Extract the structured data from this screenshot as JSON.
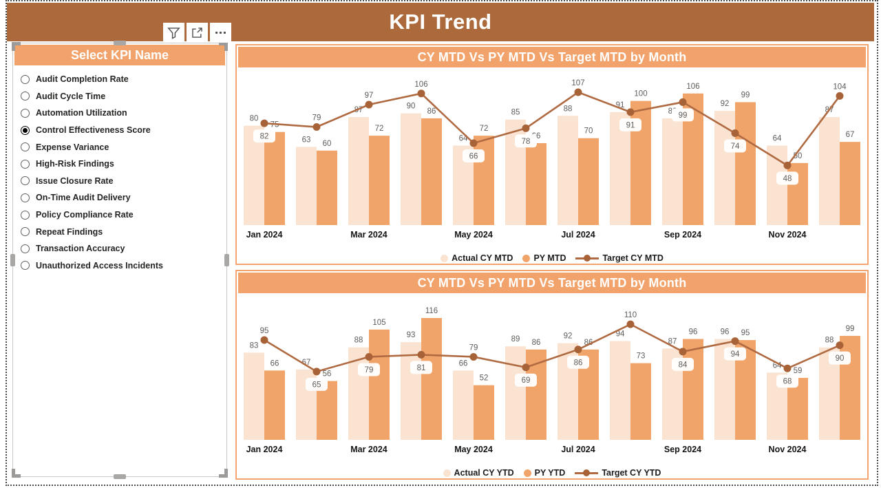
{
  "page": {
    "title": "KPI Trend"
  },
  "toolbar": {
    "buttons": [
      {
        "name": "filter"
      },
      {
        "name": "focus-mode"
      },
      {
        "name": "more-options"
      }
    ]
  },
  "slicer": {
    "title": "Select KPI Name",
    "options": [
      {
        "label": "Audit Completion Rate",
        "selected": false
      },
      {
        "label": "Audit Cycle Time",
        "selected": false
      },
      {
        "label": "Automation Utilization",
        "selected": false
      },
      {
        "label": "Control Effectiveness Score",
        "selected": true
      },
      {
        "label": "Expense Variance",
        "selected": false
      },
      {
        "label": "High-Risk Findings",
        "selected": false
      },
      {
        "label": "Issue Closure Rate",
        "selected": false
      },
      {
        "label": "On-Time Audit Delivery",
        "selected": false
      },
      {
        "label": "Policy Compliance Rate",
        "selected": false
      },
      {
        "label": "Repeat Findings",
        "selected": false
      },
      {
        "label": "Transaction Accuracy",
        "selected": false
      },
      {
        "label": "Unauthorized Access Incidents",
        "selected": false
      }
    ]
  },
  "colors": {
    "header_bg": "#AC6A3C",
    "panel_header_bg": "#F2A36B",
    "chart_border": "#F3A46C",
    "actual_bar": "#FAE3D0",
    "py_bar": "#F1A469",
    "target_line": "#B06A42",
    "target_marker": "#A86237",
    "data_label": "#5E5C5A"
  },
  "chart_data": [
    {
      "type": "bar",
      "subtype": "clustered-bars-with-line",
      "title": "CY MTD Vs PY MTD Vs Target MTD by Month",
      "categories": [
        "Jan 2024",
        "Feb 2024",
        "Mar 2024",
        "Apr 2024",
        "May 2024",
        "Jun 2024",
        "Jul 2024",
        "Aug 2024",
        "Sep 2024",
        "Oct 2024",
        "Nov 2024",
        "Dec 2024"
      ],
      "x_axis_shown_labels": [
        "Jan 2024",
        "Mar 2024",
        "May 2024",
        "Jul 2024",
        "Sep 2024",
        "Nov 2024"
      ],
      "series": [
        {
          "name": "Actual CY MTD",
          "type": "bar",
          "color": "#FAE3D0",
          "values": [
            80,
            63,
            87,
            90,
            64,
            85,
            88,
            91,
            86,
            92,
            64,
            87
          ]
        },
        {
          "name": "PY MTD",
          "type": "bar",
          "color": "#F1A469",
          "values": [
            75,
            60,
            72,
            86,
            72,
            66,
            70,
            100,
            106,
            99,
            50,
            67
          ]
        },
        {
          "name": "Target CY MTD",
          "type": "line",
          "color": "#B06A42",
          "values": [
            82,
            79,
            97,
            106,
            66,
            78,
            107,
            91,
            99,
            74,
            48,
            104
          ]
        }
      ],
      "xlabel": "",
      "ylabel": "",
      "ylim": [
        0,
        120
      ],
      "grid": false,
      "legend_position": "bottom"
    },
    {
      "type": "bar",
      "subtype": "clustered-bars-with-line",
      "title": "CY MTD Vs PY MTD Vs Target MTD by Month",
      "categories": [
        "Jan 2024",
        "Feb 2024",
        "Mar 2024",
        "Apr 2024",
        "May 2024",
        "Jun 2024",
        "Jul 2024",
        "Aug 2024",
        "Sep 2024",
        "Oct 2024",
        "Nov 2024",
        "Dec 2024"
      ],
      "x_axis_shown_labels": [
        "Jan 2024",
        "Mar 2024",
        "May 2024",
        "Jul 2024",
        "Sep 2024",
        "Nov 2024"
      ],
      "series": [
        {
          "name": "Actual CY YTD",
          "type": "bar",
          "color": "#FAE3D0",
          "values": [
            83,
            67,
            88,
            93,
            66,
            89,
            92,
            94,
            87,
            96,
            64,
            88
          ]
        },
        {
          "name": "PY YTD",
          "type": "bar",
          "color": "#F1A469",
          "values": [
            66,
            56,
            105,
            116,
            52,
            86,
            86,
            73,
            96,
            95,
            59,
            99
          ]
        },
        {
          "name": "Target CY YTD",
          "type": "line",
          "color": "#B06A42",
          "values": [
            95,
            65,
            79,
            81,
            79,
            69,
            86,
            110,
            84,
            94,
            68,
            90
          ]
        }
      ],
      "xlabel": "",
      "ylabel": "",
      "ylim": [
        0,
        125
      ],
      "grid": false,
      "legend_position": "bottom"
    }
  ]
}
